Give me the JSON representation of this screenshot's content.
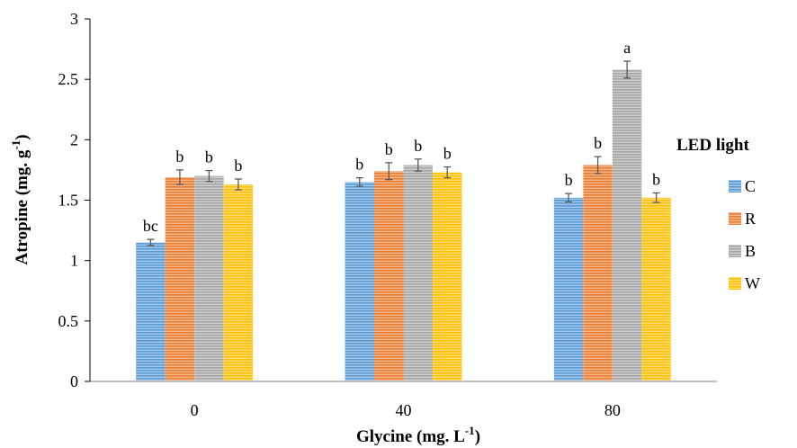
{
  "chart_data": {
    "type": "bar",
    "title": "",
    "xlabel": "Glycine (mg. L",
    "xlabel_sup": "-1",
    "xlabel_tail": ")",
    "ylabel": "Atropine (mg. g",
    "ylabel_sup": "-1",
    "ylabel_tail": ")",
    "ylim": [
      0,
      3
    ],
    "yticks": [
      "0",
      "0.5",
      "1",
      "1.5",
      "2",
      "2.5",
      "3"
    ],
    "ytick_values": [
      0,
      0.5,
      1,
      1.5,
      2,
      2.5,
      3
    ],
    "categories": [
      "0",
      "40",
      "80"
    ],
    "grid": false,
    "legend_title": "LED  light",
    "legend_position": "right",
    "series": [
      {
        "name": "C",
        "color": "#5B9BD5",
        "values": [
          1.15,
          1.65,
          1.52
        ],
        "errors": [
          0.025,
          0.035,
          0.035
        ],
        "labels": [
          "bc",
          "b",
          "b"
        ]
      },
      {
        "name": "R",
        "color": "#ED7D31",
        "values": [
          1.69,
          1.74,
          1.79
        ],
        "errors": [
          0.06,
          0.07,
          0.07
        ],
        "labels": [
          "b",
          "b",
          "b"
        ]
      },
      {
        "name": "B",
        "color": "#A5A5A5",
        "values": [
          1.7,
          1.79,
          2.58
        ],
        "errors": [
          0.045,
          0.05,
          0.07
        ],
        "labels": [
          "b",
          "b",
          "a"
        ]
      },
      {
        "name": "W",
        "color": "#FFC000",
        "values": [
          1.63,
          1.73,
          1.52
        ],
        "errors": [
          0.045,
          0.045,
          0.04
        ],
        "labels": [
          "b",
          "b",
          "b"
        ]
      }
    ]
  }
}
